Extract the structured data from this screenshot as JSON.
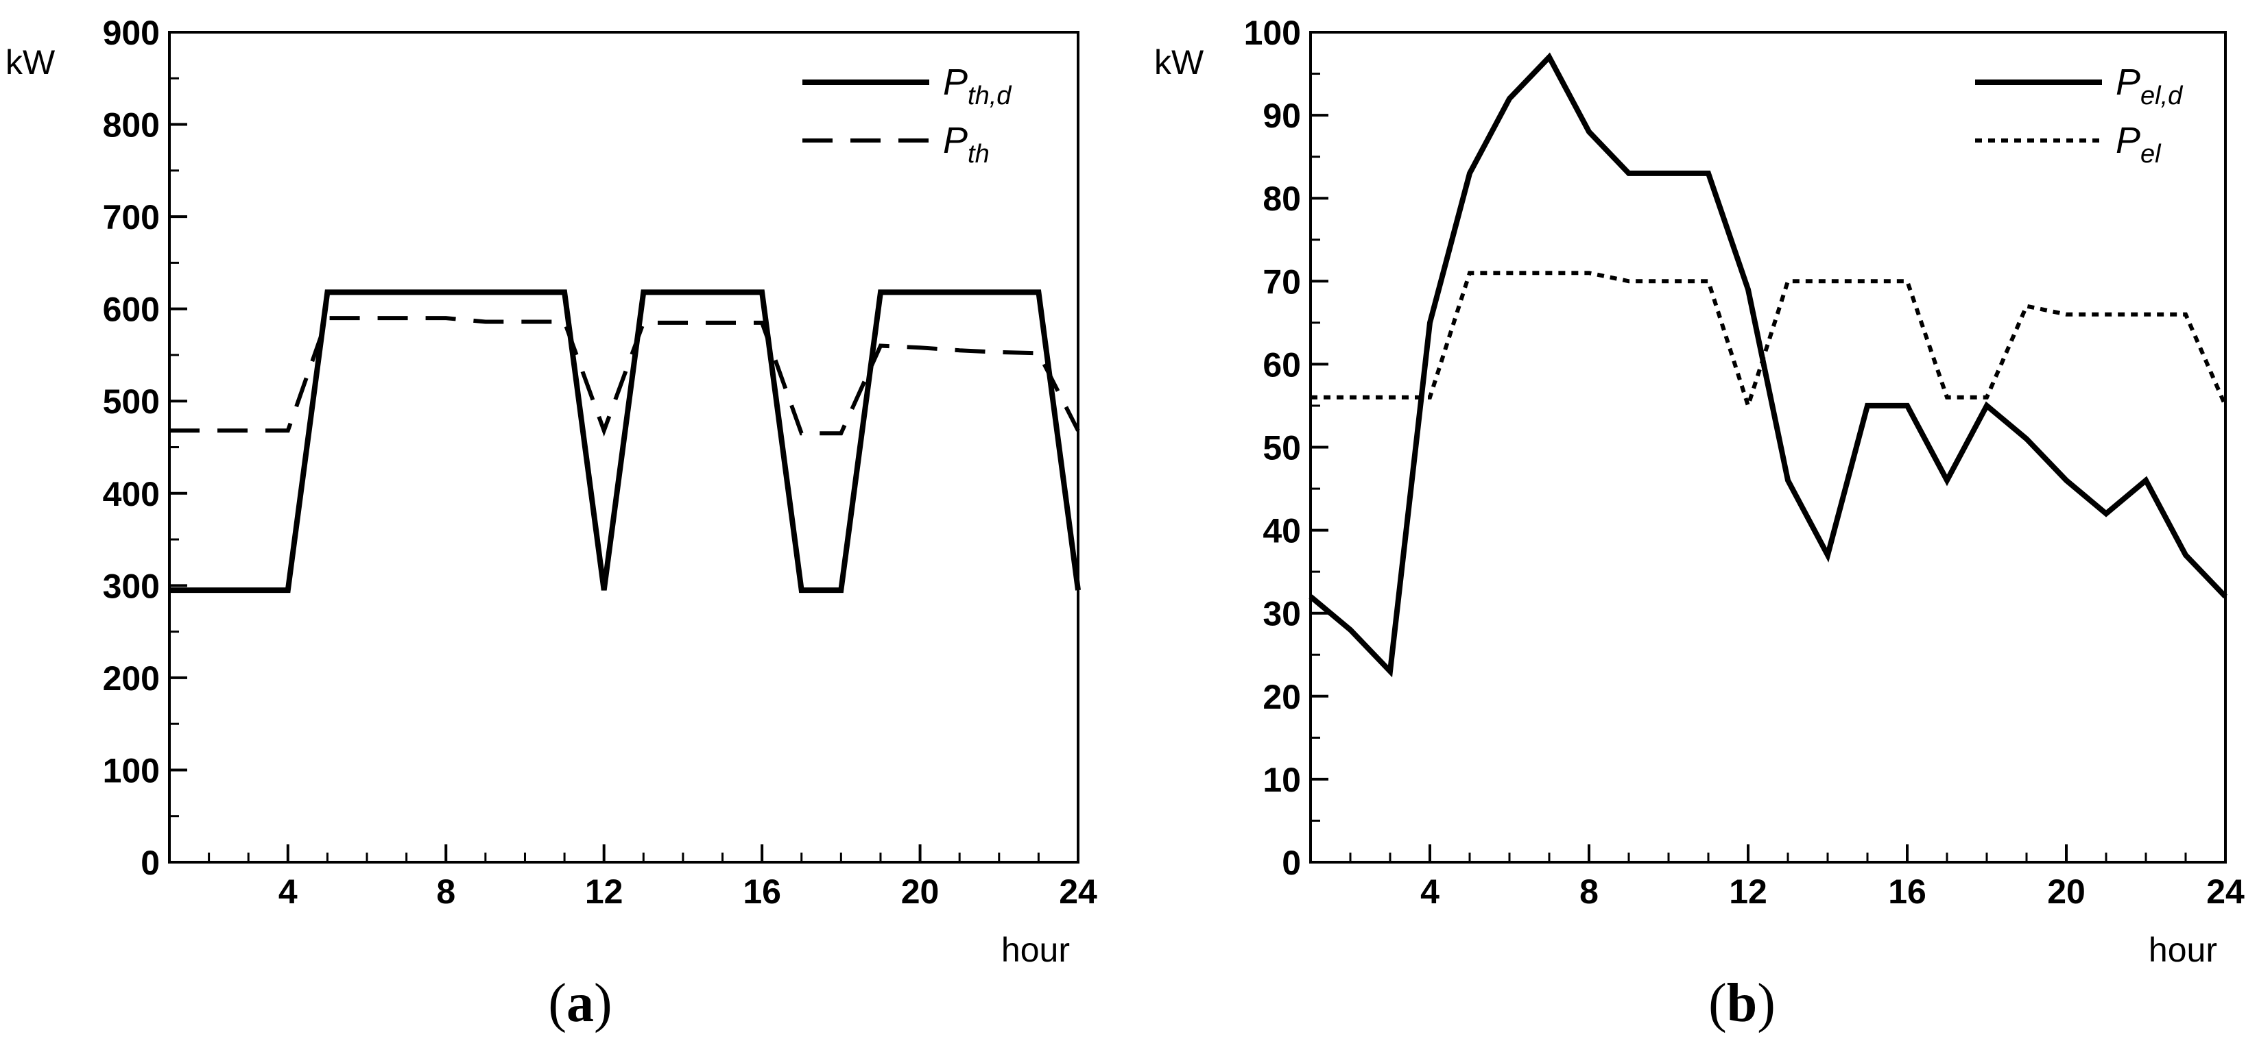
{
  "chart_data": [
    {
      "type": "line",
      "panel": "a",
      "panel_label": {
        "open": "(",
        "letter": "a",
        "close": ")"
      },
      "ylabel": "kW",
      "xlabel": "hour",
      "xlim": [
        1,
        24
      ],
      "ylim": [
        0,
        900
      ],
      "xticks": [
        4,
        8,
        12,
        16,
        20,
        24
      ],
      "yticks": [
        0,
        100,
        200,
        300,
        400,
        500,
        600,
        700,
        800,
        900
      ],
      "grid": false,
      "legend_position": "top-right",
      "series": [
        {
          "name": "P_th,d",
          "legend_main": "P",
          "legend_sub": "th,d",
          "style": "solid",
          "x": [
            1,
            2,
            3,
            4,
            5,
            6,
            7,
            8,
            9,
            10,
            11,
            12,
            13,
            14,
            15,
            16,
            17,
            18,
            19,
            20,
            21,
            22,
            23,
            24
          ],
          "values": [
            295,
            295,
            295,
            295,
            618,
            618,
            618,
            618,
            618,
            618,
            618,
            295,
            618,
            618,
            618,
            618,
            295,
            295,
            618,
            618,
            618,
            618,
            618,
            295
          ]
        },
        {
          "name": "P_th",
          "legend_main": "P",
          "legend_sub": "th",
          "style": "dashed",
          "x": [
            1,
            2,
            3,
            4,
            5,
            6,
            7,
            8,
            9,
            10,
            11,
            12,
            13,
            14,
            15,
            16,
            17,
            18,
            19,
            20,
            21,
            22,
            23,
            24
          ],
          "values": [
            468,
            468,
            468,
            468,
            590,
            590,
            590,
            590,
            586,
            586,
            586,
            468,
            585,
            585,
            585,
            585,
            465,
            465,
            560,
            558,
            555,
            553,
            552,
            468
          ]
        }
      ]
    },
    {
      "type": "line",
      "panel": "b",
      "panel_label": {
        "open": "(",
        "letter": "b",
        "close": ")"
      },
      "ylabel": "kW",
      "xlabel": "hour",
      "xlim": [
        1,
        24
      ],
      "ylim": [
        0,
        100
      ],
      "xticks": [
        4,
        8,
        12,
        16,
        20,
        24
      ],
      "yticks": [
        0,
        10,
        20,
        30,
        40,
        50,
        60,
        70,
        80,
        90,
        100
      ],
      "grid": false,
      "legend_position": "top-right",
      "series": [
        {
          "name": "P_el,d",
          "legend_main": "P",
          "legend_sub": "el,d",
          "style": "solid",
          "x": [
            1,
            2,
            3,
            4,
            5,
            6,
            7,
            8,
            9,
            10,
            11,
            12,
            13,
            14,
            15,
            16,
            17,
            18,
            19,
            20,
            21,
            22,
            23,
            24
          ],
          "values": [
            32,
            28,
            23,
            65,
            83,
            92,
            97,
            88,
            83,
            83,
            83,
            69,
            46,
            37,
            55,
            55,
            46,
            55,
            51,
            46,
            42,
            46,
            37,
            32
          ]
        },
        {
          "name": "P_el",
          "legend_main": "P",
          "legend_sub": "el",
          "style": "dotted",
          "x": [
            1,
            2,
            3,
            4,
            5,
            6,
            7,
            8,
            9,
            10,
            11,
            12,
            13,
            14,
            15,
            16,
            17,
            18,
            19,
            20,
            21,
            22,
            23,
            24
          ],
          "values": [
            56,
            56,
            56,
            56,
            71,
            71,
            71,
            71,
            70,
            70,
            70,
            55,
            70,
            70,
            70,
            70,
            56,
            56,
            67,
            66,
            66,
            66,
            66,
            55
          ]
        }
      ]
    }
  ]
}
